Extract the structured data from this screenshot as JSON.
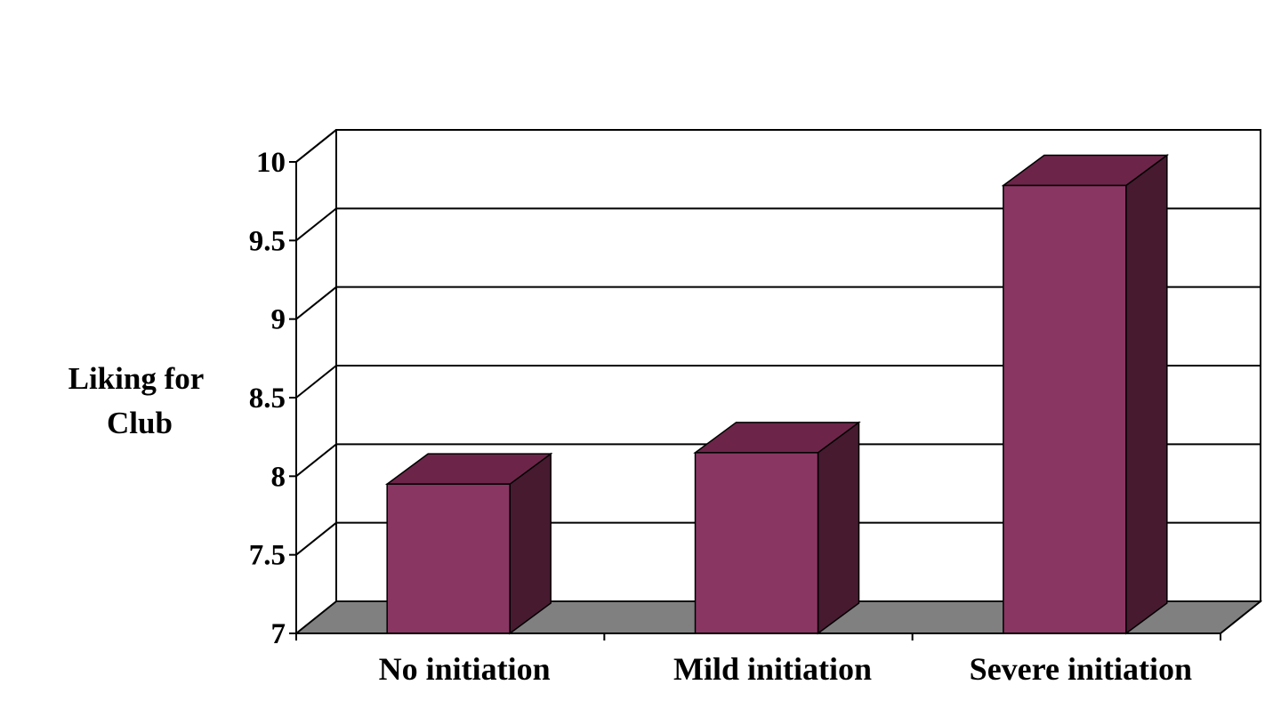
{
  "chart_data": {
    "type": "bar",
    "title": "",
    "xlabel": "",
    "ylabel": [
      "Liking for",
      "Club"
    ],
    "categories": [
      "No initiation",
      "Mild initiation",
      "Severe initiation"
    ],
    "values": [
      7.95,
      8.15,
      9.85
    ],
    "ylim": [
      7,
      10
    ],
    "y_ticks": [
      7,
      7.5,
      8,
      8.5,
      9,
      9.5,
      10
    ],
    "y_tick_labels": [
      "7",
      "7.5",
      "8",
      "8.5",
      "9",
      "9.5",
      "10"
    ],
    "grid": true,
    "style": "3d-column",
    "colors": {
      "bar_front": "#893762",
      "bar_top": "#6c2548",
      "bar_side": "#471a30",
      "floor": "#808080",
      "grid": "#000000"
    }
  }
}
